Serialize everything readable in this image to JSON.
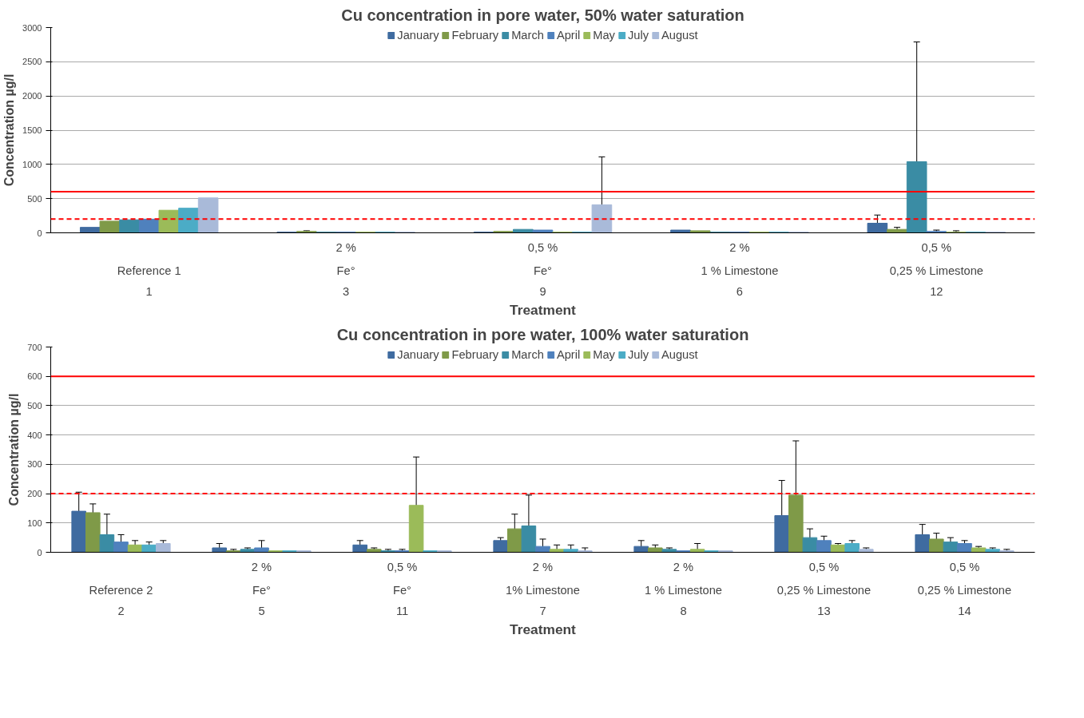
{
  "chart_data": [
    {
      "type": "bar",
      "title": "Cu concentration in pore water, 50% water saturation",
      "xlabel": "Treatment",
      "ylabel": "Concentration µg/l",
      "categories": [
        "\nReference 1\n1",
        "2 %\nFe°\n3",
        "0,5 %\nFe°\n9",
        "2 %\n1 % Limestone\n6",
        "0,5 %\n0,25 % Limestone\n12"
      ],
      "ylim": [
        0,
        3000
      ],
      "yticks": [
        0,
        500,
        1000,
        1500,
        2000,
        2500,
        3000
      ],
      "grid": "y",
      "legend": "top",
      "ref_lines": [
        {
          "axis": "y",
          "value": 600,
          "color": "#ff0000",
          "line_style": "solid"
        },
        {
          "axis": "y",
          "value": 200,
          "color": "#ff0000",
          "line_style": "dashed"
        }
      ],
      "series": [
        {
          "name": "January",
          "color": "#3f6ba0",
          "values": [
            80,
            10,
            10,
            40,
            140
          ],
          "errors": [
            null,
            null,
            null,
            null,
            120
          ]
        },
        {
          "name": "February",
          "color": "#7f9a48",
          "values": [
            170,
            20,
            20,
            30,
            50
          ],
          "errors": [
            null,
            10,
            null,
            null,
            30
          ]
        },
        {
          "name": "March",
          "color": "#3a8ca4",
          "values": [
            190,
            10,
            50,
            10,
            1040
          ],
          "errors": [
            null,
            null,
            null,
            null,
            1750
          ]
        },
        {
          "name": "April",
          "color": "#4f81bd",
          "values": [
            200,
            10,
            40,
            10,
            20
          ],
          "errors": [
            null,
            null,
            null,
            null,
            20
          ]
        },
        {
          "name": "May",
          "color": "#9bbb59",
          "values": [
            330,
            10,
            10,
            10,
            10
          ],
          "errors": [
            null,
            null,
            null,
            null,
            20
          ]
        },
        {
          "name": "July",
          "color": "#4bacc6",
          "values": [
            360,
            10,
            10,
            10,
            10
          ],
          "errors": [
            null,
            null,
            null,
            null,
            null
          ]
        },
        {
          "name": "August",
          "color": "#a9bad9",
          "values": [
            510,
            10,
            410,
            10,
            10
          ],
          "errors": [
            null,
            null,
            700,
            null,
            null
          ]
        }
      ]
    },
    {
      "type": "bar",
      "title": "Cu concentration in pore water, 100% water saturation",
      "xlabel": "Treatment",
      "ylabel": "Concentration µg/l",
      "categories": [
        "\nReference 2\n2",
        "2 %\nFe°\n5",
        "0,5 %\nFe°\n11",
        "2 %\n1% Limestone\n7",
        "2 %\n1 % Limestone\n8",
        "0,5 %\n0,25 % Limestone\n13",
        "0,5 %\n0,25 % Limestone\n14"
      ],
      "ylim": [
        0,
        700
      ],
      "yticks": [
        0,
        100,
        200,
        300,
        400,
        500,
        600,
        700
      ],
      "grid": "y",
      "legend": "top",
      "ref_lines": [
        {
          "axis": "y",
          "value": 600,
          "color": "#ff0000",
          "line_style": "solid"
        },
        {
          "axis": "y",
          "value": 200,
          "color": "#ff0000",
          "line_style": "dashed"
        }
      ],
      "series": [
        {
          "name": "January",
          "color": "#3f6ba0",
          "values": [
            140,
            15,
            25,
            40,
            20,
            125,
            60
          ],
          "errors": [
            65,
            15,
            15,
            10,
            20,
            120,
            35
          ]
        },
        {
          "name": "February",
          "color": "#7f9a48",
          "values": [
            135,
            5,
            10,
            80,
            15,
            195,
            45
          ],
          "errors": [
            30,
            5,
            5,
            50,
            10,
            185,
            20
          ]
        },
        {
          "name": "March",
          "color": "#3a8ca4",
          "values": [
            60,
            10,
            5,
            90,
            10,
            50,
            35
          ],
          "errors": [
            70,
            5,
            5,
            105,
            5,
            30,
            15
          ]
        },
        {
          "name": "April",
          "color": "#4f81bd",
          "values": [
            35,
            15,
            5,
            20,
            5,
            40,
            30
          ],
          "errors": [
            25,
            25,
            5,
            25,
            null,
            15,
            10
          ]
        },
        {
          "name": "May",
          "color": "#9bbb59",
          "values": [
            25,
            5,
            160,
            10,
            10,
            25,
            15
          ],
          "errors": [
            15,
            null,
            165,
            15,
            20,
            5,
            5
          ]
        },
        {
          "name": "July",
          "color": "#4bacc6",
          "values": [
            25,
            5,
            5,
            10,
            5,
            30,
            10
          ],
          "errors": [
            10,
            null,
            null,
            15,
            null,
            10,
            5
          ]
        },
        {
          "name": "August",
          "color": "#a9bad9",
          "values": [
            30,
            5,
            5,
            5,
            5,
            10,
            5
          ],
          "errors": [
            10,
            null,
            null,
            10,
            null,
            5,
            5
          ]
        }
      ]
    }
  ]
}
